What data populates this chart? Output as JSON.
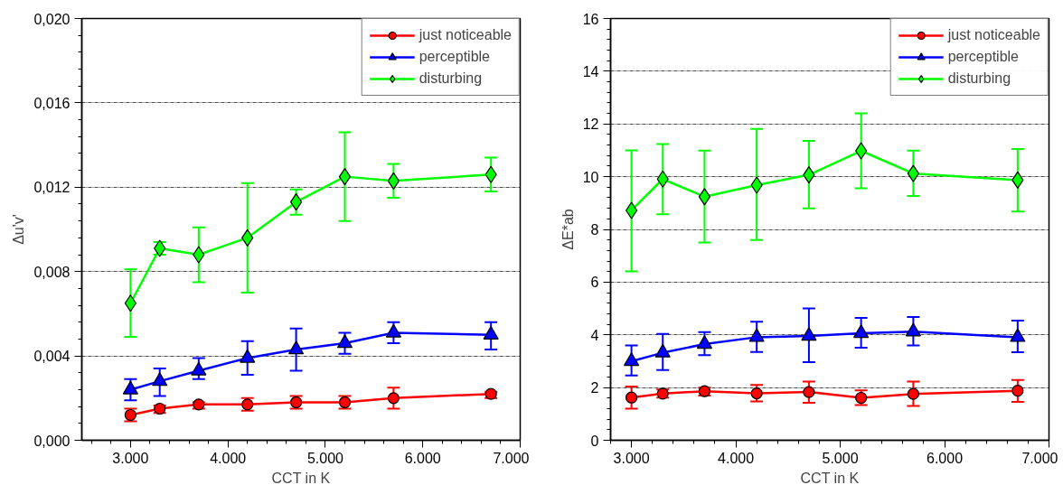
{
  "chart_data": [
    {
      "type": "line",
      "xlabel": "CCT in K",
      "ylabel": "Δu'v'",
      "x": [
        3000,
        3300,
        3700,
        4200,
        4700,
        5200,
        5700,
        6700
      ],
      "xlim": [
        2500,
        7000
      ],
      "xticks": [
        {
          "value": 3000,
          "label": "3.000"
        },
        {
          "value": 4000,
          "label": "4.000"
        },
        {
          "value": 5000,
          "label": "5.000"
        },
        {
          "value": 6000,
          "label": "6.000"
        },
        {
          "value": 7000,
          "label": "7.000"
        }
      ],
      "ylim": [
        0,
        0.02
      ],
      "yticks": [
        {
          "value": 0,
          "label": "0,000"
        },
        {
          "value": 0.004,
          "label": "0,004"
        },
        {
          "value": 0.008,
          "label": "0,008"
        },
        {
          "value": 0.012,
          "label": "0,012"
        },
        {
          "value": 0.016,
          "label": "0,016"
        },
        {
          "value": 0.02,
          "label": "0,020"
        }
      ],
      "grid": "y",
      "legend": "top right",
      "line_style": "solid",
      "series": [
        {
          "name": "just noticeable",
          "color": "#ff0000",
          "marker": "circle",
          "values": [
            0.0012,
            0.0015,
            0.0017,
            0.0017,
            0.0018,
            0.0018,
            0.002,
            0.0022
          ],
          "errors": [
            [
              0.0009,
              0.0015
            ],
            [
              0.0013,
              0.00165
            ],
            [
              0.0015,
              0.0018
            ],
            [
              0.0014,
              0.002
            ],
            [
              0.0015,
              0.0021
            ],
            [
              0.0015,
              0.0021
            ],
            [
              0.0015,
              0.0025
            ],
            [
              0.002,
              0.0023
            ]
          ]
        },
        {
          "name": "perceptible",
          "color": "#0000ff",
          "marker": "triangle",
          "values": [
            0.0024,
            0.0028,
            0.0033,
            0.0039,
            0.0043,
            0.0046,
            0.0051,
            0.005
          ],
          "errors": [
            [
              0.0019,
              0.0029
            ],
            [
              0.0021,
              0.0034
            ],
            [
              0.0029,
              0.0039
            ],
            [
              0.0031,
              0.0047
            ],
            [
              0.0033,
              0.0053
            ],
            [
              0.0041,
              0.0051
            ],
            [
              0.0046,
              0.0056
            ],
            [
              0.0043,
              0.0056
            ]
          ]
        },
        {
          "name": "disturbing",
          "color": "#00ff00",
          "marker": "diamond",
          "values": [
            0.0065,
            0.0091,
            0.0088,
            0.0096,
            0.0113,
            0.0125,
            0.0123,
            0.0126
          ],
          "errors": [
            [
              0.0049,
              0.0081
            ],
            [
              0.0088,
              0.0094
            ],
            [
              0.0075,
              0.0101
            ],
            [
              0.007,
              0.0122
            ],
            [
              0.0107,
              0.0119
            ],
            [
              0.0104,
              0.0146
            ],
            [
              0.0115,
              0.0131
            ],
            [
              0.0118,
              0.0134
            ]
          ]
        }
      ]
    },
    {
      "type": "line",
      "xlabel": "CCT in K",
      "ylabel": "ΔE*ab",
      "x": [
        3000,
        3300,
        3700,
        4200,
        4700,
        5200,
        5700,
        6700
      ],
      "xlim": [
        2800,
        7000
      ],
      "xticks": [
        {
          "value": 3000,
          "label": "3.000"
        },
        {
          "value": 4000,
          "label": "4.000"
        },
        {
          "value": 5000,
          "label": "5.000"
        },
        {
          "value": 6000,
          "label": "6.000"
        },
        {
          "value": 7000,
          "label": "7.000"
        }
      ],
      "ylim": [
        0,
        16
      ],
      "yticks": [
        0,
        2,
        4,
        6,
        8,
        10,
        12,
        14,
        16
      ],
      "grid": "y",
      "legend": "top right",
      "line_style": "solid",
      "series": [
        {
          "name": "just noticeable",
          "color": "#ff0000",
          "marker": "circle",
          "values": [
            1.62,
            1.77,
            1.86,
            1.78,
            1.83,
            1.61,
            1.76,
            1.88
          ],
          "errors": [
            [
              1.2,
              2.04
            ],
            [
              1.62,
              1.93
            ],
            [
              1.7,
              2.0
            ],
            [
              1.47,
              2.1
            ],
            [
              1.42,
              2.23
            ],
            [
              1.34,
              1.89
            ],
            [
              1.3,
              2.23
            ],
            [
              1.46,
              2.29
            ]
          ]
        },
        {
          "name": "perceptible",
          "color": "#0000ff",
          "marker": "triangle",
          "values": [
            3.0,
            3.32,
            3.65,
            3.91,
            3.96,
            4.06,
            4.12,
            3.91
          ],
          "errors": [
            [
              2.46,
              3.6
            ],
            [
              2.66,
              4.03
            ],
            [
              3.23,
              4.1
            ],
            [
              3.35,
              4.5
            ],
            [
              2.96,
              5.0
            ],
            [
              3.51,
              4.64
            ],
            [
              3.6,
              4.68
            ],
            [
              3.34,
              4.54
            ]
          ]
        },
        {
          "name": "disturbing",
          "color": "#00ff00",
          "marker": "diamond",
          "values": [
            8.72,
            9.91,
            9.24,
            9.68,
            10.07,
            10.98,
            10.12,
            9.87
          ],
          "errors": [
            [
              6.41,
              11.0
            ],
            [
              8.57,
              11.24
            ],
            [
              7.5,
              10.99
            ],
            [
              7.6,
              11.81
            ],
            [
              8.8,
              11.36
            ],
            [
              9.56,
              12.4
            ],
            [
              9.27,
              10.99
            ],
            [
              8.68,
              11.05
            ]
          ]
        }
      ]
    }
  ]
}
